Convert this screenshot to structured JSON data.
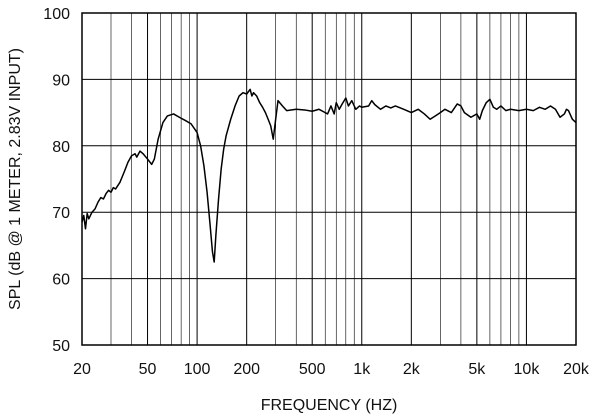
{
  "chart_data": {
    "type": "line",
    "title": "",
    "xlabel": "FREQUENCY (HZ)",
    "ylabel": "SPL (dB @ 1 METER, 2.83V INPUT)",
    "x_scale": "log",
    "xlim": [
      20,
      20000
    ],
    "ylim": [
      50,
      100
    ],
    "grid": true,
    "x_ticks": [
      {
        "value": 20,
        "label": "20"
      },
      {
        "value": 50,
        "label": "50"
      },
      {
        "value": 100,
        "label": "100"
      },
      {
        "value": 200,
        "label": "200"
      },
      {
        "value": 500,
        "label": "500"
      },
      {
        "value": 1000,
        "label": "1k"
      },
      {
        "value": 2000,
        "label": "2k"
      },
      {
        "value": 5000,
        "label": "5k"
      },
      {
        "value": 10000,
        "label": "10k"
      },
      {
        "value": 20000,
        "label": "20k"
      }
    ],
    "y_ticks": [
      {
        "value": 50,
        "label": "50"
      },
      {
        "value": 60,
        "label": "60"
      },
      {
        "value": 70,
        "label": "70"
      },
      {
        "value": 80,
        "label": "80"
      },
      {
        "value": 90,
        "label": "90"
      },
      {
        "value": 100,
        "label": "100"
      }
    ],
    "minor_x_grid": [
      30,
      40,
      60,
      70,
      80,
      90,
      300,
      400,
      600,
      700,
      800,
      900,
      3000,
      4000,
      6000,
      7000,
      8000,
      9000
    ],
    "series": [
      {
        "color": "#000000",
        "points": [
          [
            20,
            68.5
          ],
          [
            20.5,
            69.5
          ],
          [
            21,
            67.5
          ],
          [
            21.5,
            69.8
          ],
          [
            22,
            69
          ],
          [
            23,
            70
          ],
          [
            24,
            70.5
          ],
          [
            25,
            71.5
          ],
          [
            26,
            72.2
          ],
          [
            27,
            72
          ],
          [
            28,
            72.8
          ],
          [
            29,
            73.3
          ],
          [
            30,
            73.0
          ],
          [
            31,
            73.7
          ],
          [
            32,
            73.5
          ],
          [
            34,
            74.5
          ],
          [
            36,
            76
          ],
          [
            38,
            77.5
          ],
          [
            40,
            78.5
          ],
          [
            42,
            78.8
          ],
          [
            43,
            78.3
          ],
          [
            45,
            79.2
          ],
          [
            47,
            78.8
          ],
          [
            50,
            78.0
          ],
          [
            53,
            77.2
          ],
          [
            55,
            78
          ],
          [
            58,
            81
          ],
          [
            62,
            83.5
          ],
          [
            66,
            84.5
          ],
          [
            72,
            84.8
          ],
          [
            78,
            84.3
          ],
          [
            85,
            83.8
          ],
          [
            92,
            83.3
          ],
          [
            100,
            82.0
          ],
          [
            105,
            80.0
          ],
          [
            110,
            77.0
          ],
          [
            115,
            73.0
          ],
          [
            120,
            68.0
          ],
          [
            124,
            64.0
          ],
          [
            127,
            62.5
          ],
          [
            130,
            66.5
          ],
          [
            135,
            72
          ],
          [
            140,
            76.5
          ],
          [
            145,
            79.5
          ],
          [
            150,
            81.5
          ],
          [
            160,
            84.0
          ],
          [
            170,
            86.0
          ],
          [
            180,
            87.5
          ],
          [
            190,
            88.0
          ],
          [
            200,
            87.8
          ],
          [
            210,
            88.5
          ],
          [
            215,
            87.5
          ],
          [
            220,
            88.0
          ],
          [
            230,
            87.5
          ],
          [
            240,
            86.5
          ],
          [
            250,
            85.8
          ],
          [
            260,
            85.0
          ],
          [
            270,
            84.0
          ],
          [
            280,
            83.0
          ],
          [
            290,
            81.0
          ],
          [
            300,
            84.0
          ],
          [
            310,
            86.8
          ],
          [
            330,
            86.0
          ],
          [
            350,
            85.3
          ],
          [
            400,
            85.5
          ],
          [
            450,
            85.4
          ],
          [
            500,
            85.2
          ],
          [
            550,
            85.5
          ],
          [
            600,
            85.0
          ],
          [
            620,
            84.8
          ],
          [
            650,
            86.0
          ],
          [
            680,
            84.8
          ],
          [
            700,
            86.5
          ],
          [
            730,
            85.5
          ],
          [
            760,
            86.3
          ],
          [
            800,
            87.2
          ],
          [
            830,
            86.0
          ],
          [
            870,
            86.8
          ],
          [
            920,
            85.5
          ],
          [
            970,
            86.0
          ],
          [
            1000,
            85.8
          ],
          [
            1100,
            86.0
          ],
          [
            1150,
            86.8
          ],
          [
            1200,
            86.2
          ],
          [
            1300,
            85.5
          ],
          [
            1400,
            86.0
          ],
          [
            1500,
            85.7
          ],
          [
            1600,
            86.0
          ],
          [
            1800,
            85.5
          ],
          [
            2000,
            85.0
          ],
          [
            2200,
            85.5
          ],
          [
            2400,
            84.8
          ],
          [
            2600,
            84.0
          ],
          [
            2800,
            84.5
          ],
          [
            3000,
            85.0
          ],
          [
            3200,
            85.5
          ],
          [
            3500,
            85.0
          ],
          [
            3800,
            86.3
          ],
          [
            4000,
            86.0
          ],
          [
            4200,
            85.0
          ],
          [
            4600,
            84.3
          ],
          [
            5000,
            84.8
          ],
          [
            5200,
            84.0
          ],
          [
            5400,
            85.3
          ],
          [
            5700,
            86.5
          ],
          [
            6000,
            87.0
          ],
          [
            6300,
            85.8
          ],
          [
            6600,
            85.5
          ],
          [
            7000,
            86.0
          ],
          [
            7500,
            85.3
          ],
          [
            8000,
            85.5
          ],
          [
            9000,
            85.3
          ],
          [
            10000,
            85.5
          ],
          [
            11000,
            85.3
          ],
          [
            12000,
            85.8
          ],
          [
            13000,
            85.5
          ],
          [
            14000,
            86.0
          ],
          [
            15000,
            85.5
          ],
          [
            16000,
            84.3
          ],
          [
            17000,
            84.8
          ],
          [
            17500,
            85.5
          ],
          [
            18000,
            85.3
          ],
          [
            19000,
            84.0
          ],
          [
            20000,
            83.5
          ]
        ]
      }
    ]
  }
}
